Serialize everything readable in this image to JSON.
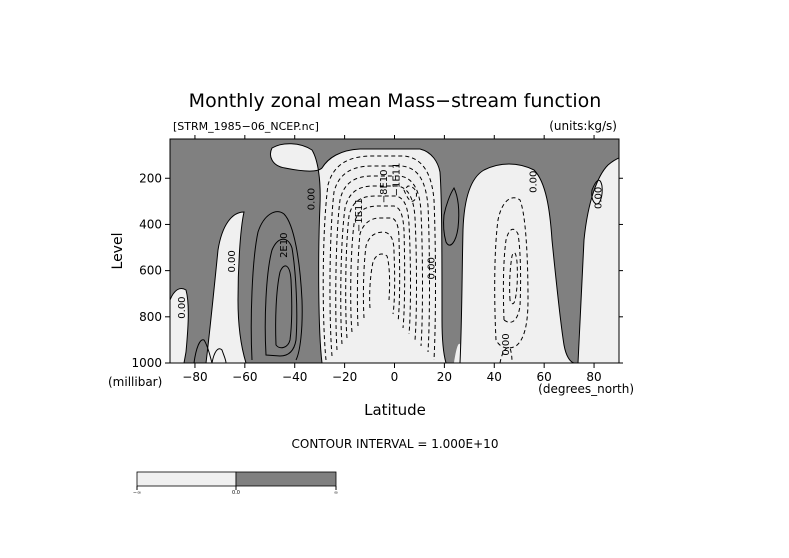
{
  "chart_data": {
    "type": "contour",
    "title": "Monthly zonal mean Mass−stream function",
    "source_file": "[STRM_1985−06_NCEP.nc]",
    "units": "(units:kg/s)",
    "xlabel": "Latitude",
    "xunits": "(degrees_north)",
    "ylabel": "Level",
    "yunits": "(millibar)",
    "xlim": [
      -90,
      90
    ],
    "ylim": [
      1000,
      30
    ],
    "y_reversed": true,
    "x_ticks": [
      -80,
      -60,
      -40,
      -20,
      0,
      20,
      40,
      60,
      80
    ],
    "x_tick_labels": [
      "−80",
      "−60",
      "−40",
      "−20",
      "0",
      "20",
      "40",
      "60",
      "80"
    ],
    "y_ticks": [
      200,
      400,
      600,
      800,
      1000
    ],
    "y_tick_labels": [
      "200",
      "400",
      "600",
      "800",
      "1000"
    ],
    "contour_interval_text": "CONTOUR INTERVAL = 1.000E+10",
    "contour_interval": 10000000000.0,
    "shading": {
      "negative_color": "#f0f0f0",
      "positive_color": "#808080",
      "legend_labels": [
        "−∞",
        "0.0",
        "∞"
      ]
    },
    "contour_labels": [
      {
        "text": "0.00",
        "lat": -64,
        "lev": 560
      },
      {
        "text": "0.00",
        "lat": -84,
        "lev": 760
      },
      {
        "text": "2E10",
        "lat": -43,
        "lev": 490
      },
      {
        "text": "0.00",
        "lat": -32,
        "lev": 290
      },
      {
        "text": "−1E11",
        "lat": -13,
        "lev": 360
      },
      {
        "text": "−8E10",
        "lat": -3,
        "lev": 235
      },
      {
        "text": "−1E11",
        "lat": 2,
        "lev": 205
      },
      {
        "text": "0.00",
        "lat": 16,
        "lev": 590
      },
      {
        "text": "0.00",
        "lat": 57,
        "lev": 215
      },
      {
        "text": "0.00",
        "lat": 83,
        "lev": 285
      },
      {
        "text": "0.00",
        "lat": 46,
        "lev": 920
      }
    ]
  }
}
